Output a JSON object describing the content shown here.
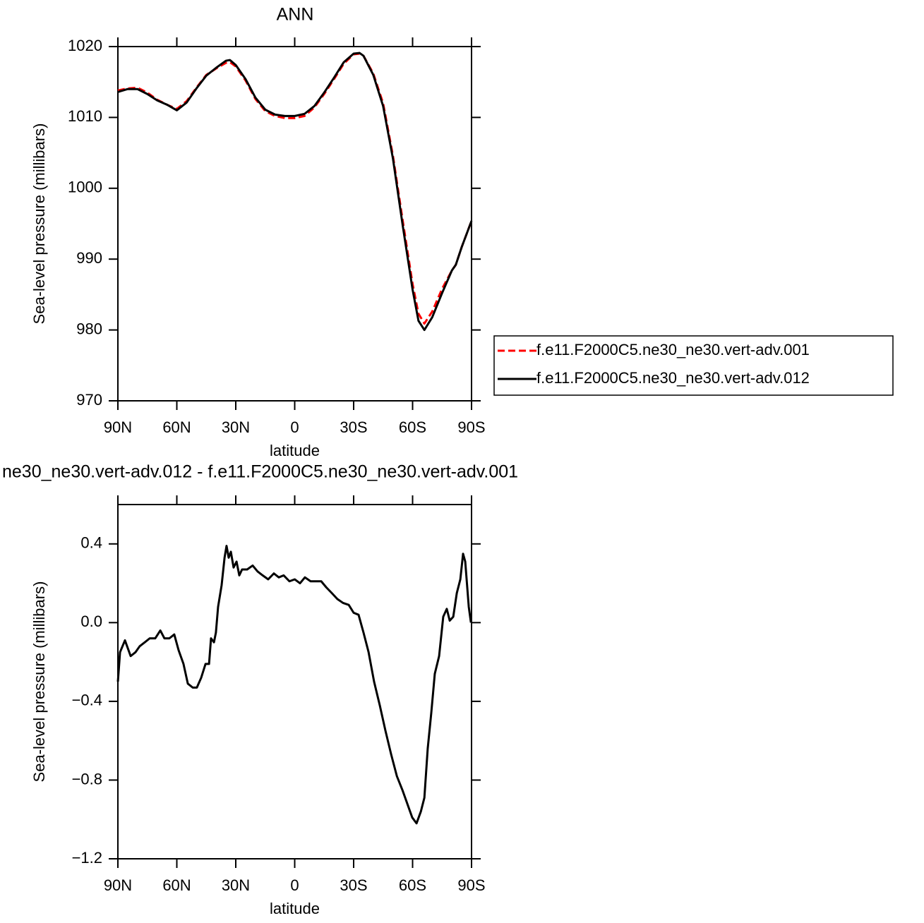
{
  "chart_data": [
    {
      "type": "line",
      "title": "ANN",
      "y_label": "Sea-level pressure (millibars)",
      "x_label": "latitude",
      "x": [
        90,
        85,
        80,
        75,
        70,
        65,
        60,
        55,
        50,
        45,
        40,
        35,
        33,
        30,
        25,
        20,
        15,
        10,
        5,
        0,
        -5,
        -10,
        -15,
        -20,
        -25,
        -30,
        -33,
        -35,
        -40,
        -45,
        -50,
        -55,
        -60,
        -63,
        -66,
        -70,
        -75,
        -80,
        -82,
        -85,
        -90
      ],
      "series": [
        {
          "name": "f.e11.F2000C5.ne30_ne30.vert-adv.001",
          "color": "#ff0000",
          "dash": "dashed",
          "values": [
            1013.8,
            1014.1,
            1014.2,
            1013.5,
            1012.5,
            1011.8,
            1011.2,
            1012.3,
            1014.2,
            1016.0,
            1016.9,
            1017.7,
            1017.8,
            1017.2,
            1015.2,
            1012.6,
            1010.9,
            1010.2,
            1009.9,
            1009.9,
            1010.2,
            1011.4,
            1013.3,
            1015.4,
            1017.6,
            1018.9,
            1019.0,
            1018.7,
            1016.2,
            1012.0,
            1004.6,
            995.4,
            986.5,
            982.3,
            980.9,
            982.6,
            985.8,
            988.4,
            989.2,
            991.7,
            995.4
          ]
        },
        {
          "name": "f.e11.F2000C5.ne30_ne30.vert-adv.012",
          "color": "#000000",
          "dash": "solid",
          "values": [
            1013.6,
            1014.0,
            1014.0,
            1013.3,
            1012.4,
            1011.8,
            1011.0,
            1012.1,
            1014.1,
            1015.9,
            1017.0,
            1018.0,
            1018.1,
            1017.4,
            1015.4,
            1012.8,
            1011.1,
            1010.4,
            1010.2,
            1010.2,
            1010.5,
            1011.6,
            1013.5,
            1015.6,
            1017.8,
            1019.0,
            1019.1,
            1018.7,
            1016.0,
            1011.6,
            1004.2,
            994.7,
            985.7,
            981.3,
            980.0,
            981.8,
            985.2,
            988.4,
            989.2,
            991.7,
            995.4
          ]
        }
      ],
      "xlim": [
        90,
        -90
      ],
      "xticks": [
        {
          "value": 90,
          "label": "90N"
        },
        {
          "value": 60,
          "label": "60N"
        },
        {
          "value": 30,
          "label": "30N"
        },
        0,
        {
          "value": -30,
          "label": "30S"
        },
        {
          "value": -60,
          "label": "60S"
        },
        {
          "value": -90,
          "label": "90S"
        }
      ],
      "ylim": [
        970,
        1020
      ],
      "yticks": [
        970,
        980,
        990,
        1000,
        1010,
        1020
      ],
      "legend": "right"
    },
    {
      "type": "line",
      "title": "ne30_ne30.vert-adv.012 - f.e11.F2000C5.ne30_ne30.vert-adv.001",
      "y_label": "Sea-level pressure (millibars)",
      "x_label": "latitude",
      "x": [
        90,
        88.9,
        86.4,
        83.5,
        81,
        78.9,
        76.3,
        73.8,
        71,
        68.4,
        66.3,
        63.8,
        61.3,
        59.1,
        56.6,
        54.4,
        51.9,
        49.8,
        47.6,
        45.4,
        43.6,
        42.6,
        41.1,
        40.1,
        39,
        37.2,
        35.7,
        34.7,
        33.6,
        32.5,
        31.1,
        29.6,
        28.2,
        26.8,
        24.2,
        21.4,
        18.9,
        16.3,
        13.5,
        10.6,
        8.1,
        5.6,
        2.7,
        0,
        -2.7,
        -5.2,
        -8.1,
        -10.6,
        -13.5,
        -16,
        -18.9,
        -21.7,
        -24.6,
        -27.5,
        -30,
        -32.5,
        -35,
        -37.6,
        -40.4,
        -43.3,
        -46.2,
        -49.1,
        -52,
        -54.8,
        -57.3,
        -59.8,
        -62,
        -64.2,
        -66,
        -67.7,
        -69.5,
        -71.3,
        -73.5,
        -75.6,
        -77.4,
        -78.9,
        -80.7,
        -82.5,
        -84.3,
        -85.7,
        -86.8,
        -88.6,
        -89.7
      ],
      "series": [
        {
          "color": "#000000",
          "dash": "solid",
          "values": [
            -0.3,
            -0.15,
            -0.09,
            -0.17,
            -0.15,
            -0.12,
            -0.1,
            -0.08,
            -0.08,
            -0.04,
            -0.08,
            -0.08,
            -0.06,
            -0.14,
            -0.21,
            -0.31,
            -0.33,
            -0.33,
            -0.28,
            -0.21,
            -0.21,
            -0.08,
            -0.1,
            -0.05,
            0.08,
            0.19,
            0.33,
            0.39,
            0.33,
            0.36,
            0.28,
            0.31,
            0.24,
            0.27,
            0.27,
            0.29,
            0.26,
            0.24,
            0.22,
            0.25,
            0.23,
            0.24,
            0.21,
            0.22,
            0.2,
            0.23,
            0.21,
            0.21,
            0.21,
            0.18,
            0.15,
            0.12,
            0.1,
            0.09,
            0.05,
            0.04,
            -0.05,
            -0.15,
            -0.3,
            -0.42,
            -0.55,
            -0.67,
            -0.78,
            -0.85,
            -0.92,
            -0.99,
            -1.02,
            -0.96,
            -0.89,
            -0.64,
            -0.46,
            -0.26,
            -0.17,
            0.03,
            0.07,
            0.01,
            0.03,
            0.15,
            0.22,
            0.35,
            0.31,
            0.08,
            0.0
          ]
        }
      ],
      "xlim": [
        90,
        -90
      ],
      "xticks": [
        {
          "value": 90,
          "label": "90N"
        },
        {
          "value": 60,
          "label": "60N"
        },
        {
          "value": 30,
          "label": "30N"
        },
        0,
        {
          "value": -30,
          "label": "30S"
        },
        {
          "value": -60,
          "label": "60S"
        },
        {
          "value": -90,
          "label": "90S"
        }
      ],
      "ylim": [
        -1.2,
        0.6
      ],
      "yticks": [
        {
          "value": -1.2,
          "label": "−1.2"
        },
        {
          "value": -0.8,
          "label": "−0.8"
        },
        {
          "value": -0.4,
          "label": "−0.4"
        },
        {
          "value": 0,
          "label": "0.0"
        },
        0.4
      ]
    }
  ]
}
